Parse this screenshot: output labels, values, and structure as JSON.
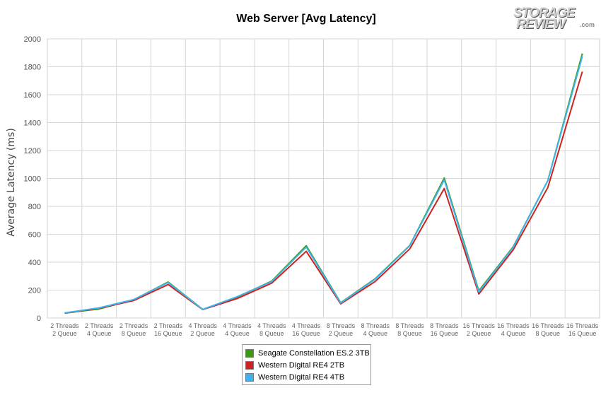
{
  "chart_data": {
    "type": "line",
    "title": "Web Server [Avg Latency]",
    "ylabel": "Average Latency (ms)",
    "xlabel": "",
    "ylim": [
      0,
      2000
    ],
    "yticks": [
      0,
      200,
      400,
      600,
      800,
      1000,
      1200,
      1400,
      1600,
      1800,
      2000
    ],
    "grid": true,
    "legend_position": "bottom-center",
    "categories": [
      [
        "2 Threads",
        "2 Queue"
      ],
      [
        "2 Threads",
        "4 Queue"
      ],
      [
        "2 Threads",
        "8 Queue"
      ],
      [
        "2 Threads",
        "16 Queue"
      ],
      [
        "4 Threads",
        "2 Queue"
      ],
      [
        "4 Threads",
        "4 Queue"
      ],
      [
        "4 Threads",
        "8 Queue"
      ],
      [
        "4 Threads",
        "16 Queue"
      ],
      [
        "8 Threads",
        "2 Queue"
      ],
      [
        "8 Threads",
        "4 Queue"
      ],
      [
        "8 Threads",
        "8 Queue"
      ],
      [
        "8 Threads",
        "16 Queue"
      ],
      [
        "16 Threads",
        "2 Queue"
      ],
      [
        "16 Threads",
        "4 Queue"
      ],
      [
        "16 Threads",
        "8 Queue"
      ],
      [
        "16 Threads",
        "16 Queue"
      ]
    ],
    "series": [
      {
        "name": "Seagate Constellation ES.2 3TB",
        "color": "#3a9a10",
        "values": [
          35,
          65,
          130,
          258,
          62,
          150,
          265,
          518,
          110,
          282,
          520,
          1003,
          195,
          512,
          985,
          1895
        ]
      },
      {
        "name": "Western Digital RE4 2TB",
        "color": "#cc2222",
        "values": [
          35,
          70,
          125,
          240,
          60,
          140,
          250,
          478,
          102,
          262,
          495,
          928,
          172,
          490,
          935,
          1765
        ]
      },
      {
        "name": "Western Digital RE4 4TB",
        "color": "#3fb3ee",
        "values": [
          37,
          73,
          132,
          254,
          62,
          153,
          262,
          508,
          108,
          278,
          518,
          990,
          187,
          508,
          985,
          1875
        ]
      }
    ]
  },
  "logo": {
    "line1": "STORAGE",
    "line2": "REVIEW",
    "suffix": ".com"
  }
}
